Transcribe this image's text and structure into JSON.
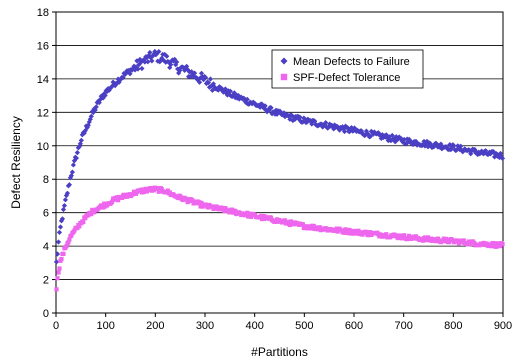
{
  "chart_data": {
    "type": "scatter",
    "xlabel": "#Partitions",
    "ylabel": "Defect Resiliency",
    "xlim": [
      0,
      900
    ],
    "ylim": [
      0,
      18
    ],
    "x_ticks": [
      0,
      100,
      200,
      300,
      400,
      500,
      600,
      700,
      800,
      900
    ],
    "y_ticks": [
      0,
      2,
      4,
      6,
      8,
      10,
      12,
      14,
      16,
      18
    ],
    "grid": "horizontal",
    "legend_position": "top-right",
    "series": [
      {
        "name": "Mean Defects to Failure",
        "color": "#4b3fc4",
        "marker": "diamond",
        "keypoints": [
          [
            1,
            3.0
          ],
          [
            5,
            4.2
          ],
          [
            10,
            5.3
          ],
          [
            20,
            6.8
          ],
          [
            30,
            8.2
          ],
          [
            40,
            9.3
          ],
          [
            50,
            10.3
          ],
          [
            60,
            11.0
          ],
          [
            70,
            11.7
          ],
          [
            80,
            12.3
          ],
          [
            90,
            12.8
          ],
          [
            100,
            13.2
          ],
          [
            120,
            13.8
          ],
          [
            140,
            14.3
          ],
          [
            160,
            14.7
          ],
          [
            180,
            15.1
          ],
          [
            200,
            15.4
          ],
          [
            220,
            15.2
          ],
          [
            240,
            14.8
          ],
          [
            260,
            14.5
          ],
          [
            280,
            14.2
          ],
          [
            300,
            13.9
          ],
          [
            350,
            13.1
          ],
          [
            400,
            12.5
          ],
          [
            450,
            11.9
          ],
          [
            500,
            11.5
          ],
          [
            550,
            11.2
          ],
          [
            600,
            10.9
          ],
          [
            650,
            10.6
          ],
          [
            700,
            10.3
          ],
          [
            750,
            10.1
          ],
          [
            800,
            9.9
          ],
          [
            850,
            9.6
          ],
          [
            900,
            9.4
          ]
        ]
      },
      {
        "name": "SPF-Defect Tolerance",
        "color": "#ee66ee",
        "marker": "square",
        "keypoints": [
          [
            1,
            1.5
          ],
          [
            5,
            2.5
          ],
          [
            10,
            3.2
          ],
          [
            20,
            4.0
          ],
          [
            30,
            4.6
          ],
          [
            40,
            5.0
          ],
          [
            50,
            5.4
          ],
          [
            60,
            5.7
          ],
          [
            70,
            6.0
          ],
          [
            80,
            6.2
          ],
          [
            100,
            6.5
          ],
          [
            120,
            6.8
          ],
          [
            140,
            7.0
          ],
          [
            160,
            7.2
          ],
          [
            180,
            7.35
          ],
          [
            200,
            7.4
          ],
          [
            220,
            7.3
          ],
          [
            240,
            7.0
          ],
          [
            260,
            6.8
          ],
          [
            280,
            6.6
          ],
          [
            300,
            6.4
          ],
          [
            350,
            6.1
          ],
          [
            400,
            5.8
          ],
          [
            450,
            5.5
          ],
          [
            500,
            5.2
          ],
          [
            550,
            5.0
          ],
          [
            600,
            4.85
          ],
          [
            650,
            4.7
          ],
          [
            700,
            4.55
          ],
          [
            750,
            4.4
          ],
          [
            800,
            4.3
          ],
          [
            850,
            4.15
          ],
          [
            900,
            4.05
          ]
        ]
      }
    ]
  }
}
